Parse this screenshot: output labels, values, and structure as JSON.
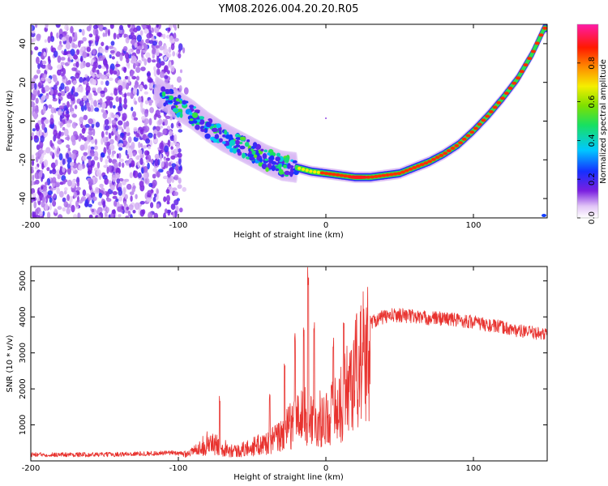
{
  "figure_title": "YM08.2026.004.20.20.R05",
  "chart_data": [
    {
      "type": "heatmap",
      "title": "YM08.2026.004.20.20.R05",
      "xlabel": "Height of straight line (km)",
      "ylabel": "Frequency (Hz)",
      "xlim": [
        -200,
        150
      ],
      "ylim": [
        -50,
        50
      ],
      "x_ticks": [
        -200,
        -100,
        0,
        100
      ],
      "y_ticks": [
        -40,
        -20,
        0,
        20,
        40
      ],
      "colorbar": {
        "label": "Normalized spectral amplitude",
        "range": [
          0.0,
          1.0
        ],
        "ticks": [
          0.0,
          0.2,
          0.4,
          0.6,
          0.8
        ],
        "colormap": "rainbow (white-violet-blue-cyan-green-yellow-red-magenta)"
      },
      "features": {
        "noise_region_x": [
          -200,
          -98
        ],
        "chirp_ridge": [
          {
            "x": -110,
            "freq": 13
          },
          {
            "x": -100,
            "freq": 8
          },
          {
            "x": -90,
            "freq": 3
          },
          {
            "x": -80,
            "freq": -3
          },
          {
            "x": -70,
            "freq": -8
          },
          {
            "x": -60,
            "freq": -12
          },
          {
            "x": -50,
            "freq": -16
          },
          {
            "x": -40,
            "freq": -20
          },
          {
            "x": -30,
            "freq": -23
          },
          {
            "x": -20,
            "freq": -24
          },
          {
            "x": -10,
            "freq": -26
          },
          {
            "x": 0,
            "freq": -27
          },
          {
            "x": 10,
            "freq": -28
          },
          {
            "x": 20,
            "freq": -29
          },
          {
            "x": 30,
            "freq": -29
          },
          {
            "x": 40,
            "freq": -28
          },
          {
            "x": 50,
            "freq": -27
          },
          {
            "x": 60,
            "freq": -24
          },
          {
            "x": 70,
            "freq": -21
          },
          {
            "x": 80,
            "freq": -17
          },
          {
            "x": 90,
            "freq": -12
          },
          {
            "x": 100,
            "freq": -5
          },
          {
            "x": 110,
            "freq": 3
          },
          {
            "x": 120,
            "freq": 12
          },
          {
            "x": 130,
            "freq": 22
          },
          {
            "x": 140,
            "freq": 35
          },
          {
            "x": 148,
            "freq": 48
          }
        ]
      }
    },
    {
      "type": "line",
      "xlabel": "Height of straight line (km)",
      "ylabel": "SNR (10 * v/v)",
      "xlim": [
        -200,
        150
      ],
      "ylim": [
        0,
        5400
      ],
      "x_ticks": [
        -200,
        -100,
        0,
        100
      ],
      "y_ticks": [
        1000,
        2000,
        3000,
        4000,
        5000
      ],
      "series": [
        {
          "name": "SNR",
          "color": "#e8322e",
          "envelope": [
            {
              "x": -200,
              "y": 150
            },
            {
              "x": -150,
              "y": 150
            },
            {
              "x": -100,
              "y": 200
            },
            {
              "x": -90,
              "y": 300
            },
            {
              "x": -80,
              "y": 650
            },
            {
              "x": -70,
              "y": 500
            },
            {
              "x": -60,
              "y": 350
            },
            {
              "x": -50,
              "y": 500
            },
            {
              "x": -40,
              "y": 650
            },
            {
              "x": -30,
              "y": 900
            },
            {
              "x": -25,
              "y": 1200
            },
            {
              "x": -20,
              "y": 1500
            },
            {
              "x": -15,
              "y": 1600
            },
            {
              "x": -10,
              "y": 1500
            },
            {
              "x": 0,
              "y": 1500
            },
            {
              "x": 5,
              "y": 1800
            },
            {
              "x": 10,
              "y": 2000
            },
            {
              "x": 15,
              "y": 2700
            },
            {
              "x": 20,
              "y": 3200
            },
            {
              "x": 25,
              "y": 3650
            },
            {
              "x": 30,
              "y": 3900
            },
            {
              "x": 40,
              "y": 4050
            },
            {
              "x": 50,
              "y": 4100
            },
            {
              "x": 60,
              "y": 4050
            },
            {
              "x": 70,
              "y": 4000
            },
            {
              "x": 80,
              "y": 4000
            },
            {
              "x": 90,
              "y": 3950
            },
            {
              "x": 100,
              "y": 3900
            },
            {
              "x": 110,
              "y": 3800
            },
            {
              "x": 120,
              "y": 3750
            },
            {
              "x": 130,
              "y": 3650
            },
            {
              "x": 140,
              "y": 3600
            },
            {
              "x": 150,
              "y": 3550
            }
          ],
          "peaks": [
            {
              "x": -72,
              "y": 1800
            },
            {
              "x": -38,
              "y": 1850
            },
            {
              "x": -28,
              "y": 2800
            },
            {
              "x": -21,
              "y": 3650
            },
            {
              "x": -15,
              "y": 3750
            },
            {
              "x": -12,
              "y": 5400
            },
            {
              "x": -8,
              "y": 3900
            },
            {
              "x": 5,
              "y": 3500
            },
            {
              "x": 12,
              "y": 3900
            }
          ]
        }
      ]
    }
  ]
}
